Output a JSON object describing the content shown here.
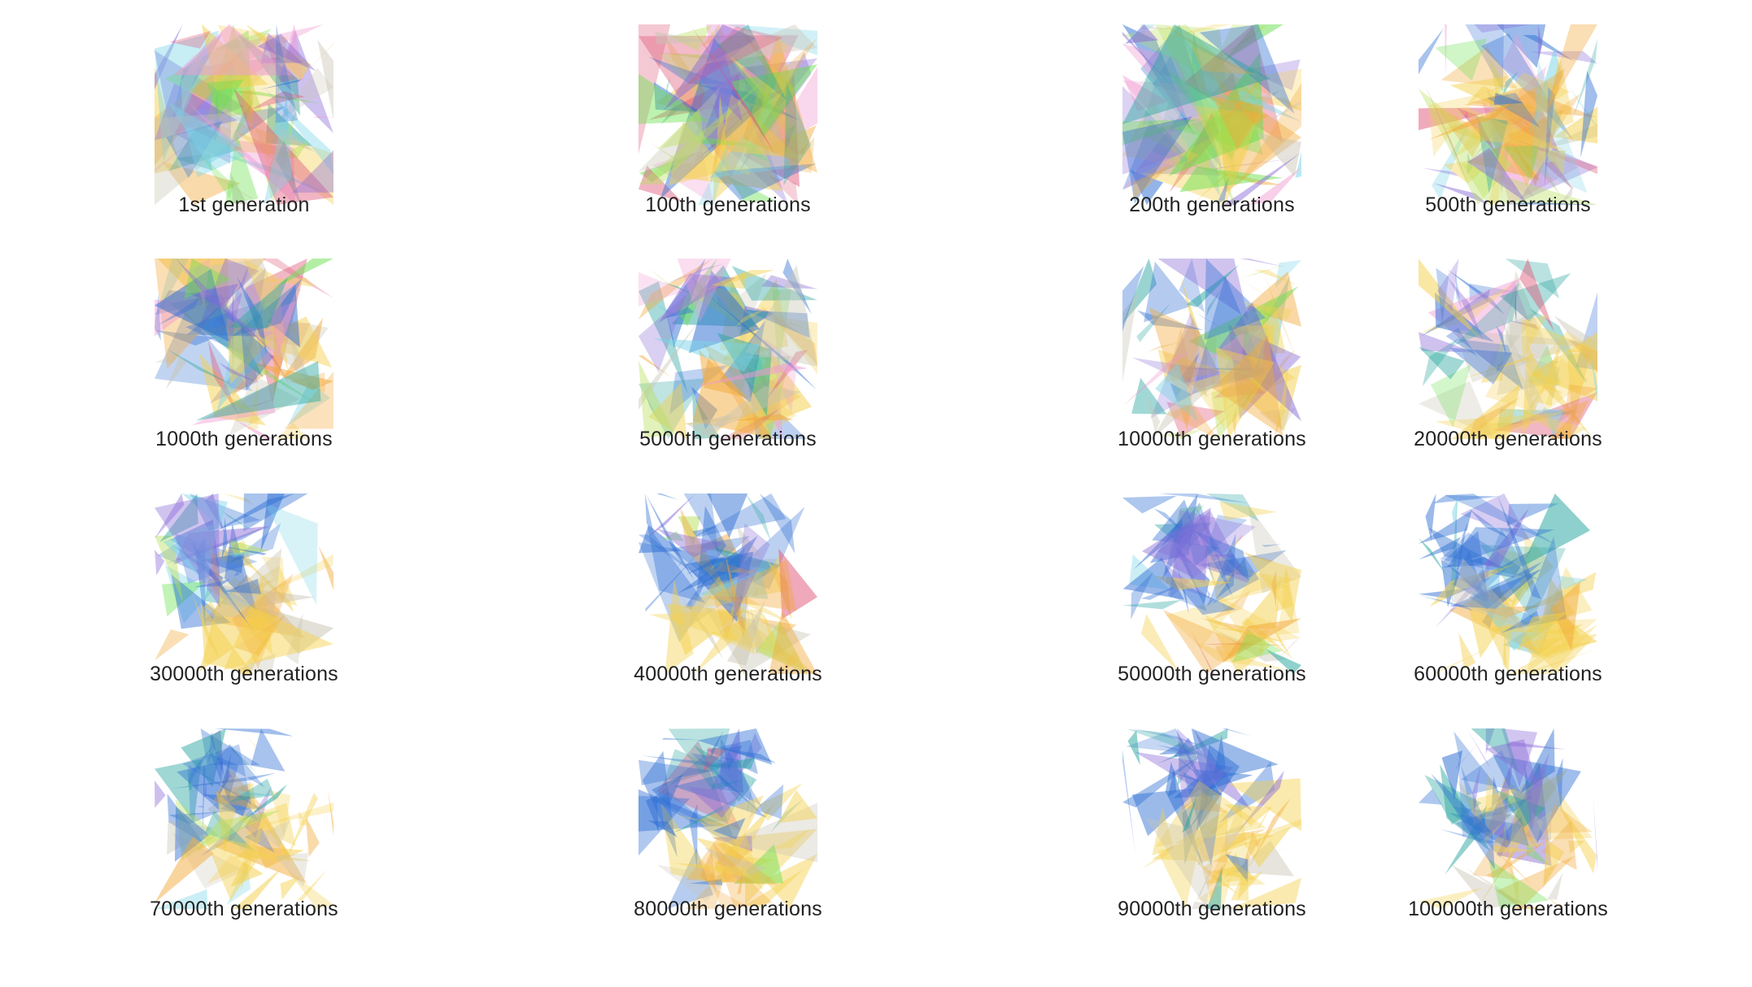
{
  "colors": {
    "background": "#ffffff",
    "caption_text": "#222222",
    "blue": "#2f6fd4",
    "teal": "#2aa6a0",
    "yellow": "#f4d04c",
    "orange": "#f2a93a",
    "purple": "#8a6cd8",
    "pink": "#f09ad2",
    "green": "#66e04a",
    "gray": "#c8c4b4"
  },
  "items": [
    {
      "caption": "1st generation",
      "stage": 0
    },
    {
      "caption": "100th generations",
      "stage": 1
    },
    {
      "caption": "200th generations",
      "stage": 2
    },
    {
      "caption": "500th generations",
      "stage": 3
    },
    {
      "caption": "1000th generations",
      "stage": 4
    },
    {
      "caption": "5000th generations",
      "stage": 5
    },
    {
      "caption": "10000th generations",
      "stage": 6
    },
    {
      "caption": "20000th generations",
      "stage": 7
    },
    {
      "caption": "30000th generations",
      "stage": 8
    },
    {
      "caption": "40000th generations",
      "stage": 9
    },
    {
      "caption": "50000th generations",
      "stage": 10
    },
    {
      "caption": "60000th generations",
      "stage": 11
    },
    {
      "caption": "70000th generations",
      "stage": 12
    },
    {
      "caption": "80000th generations",
      "stage": 13
    },
    {
      "caption": "90000th generations",
      "stage": 14
    },
    {
      "caption": "100000th generations",
      "stage": 15
    }
  ]
}
